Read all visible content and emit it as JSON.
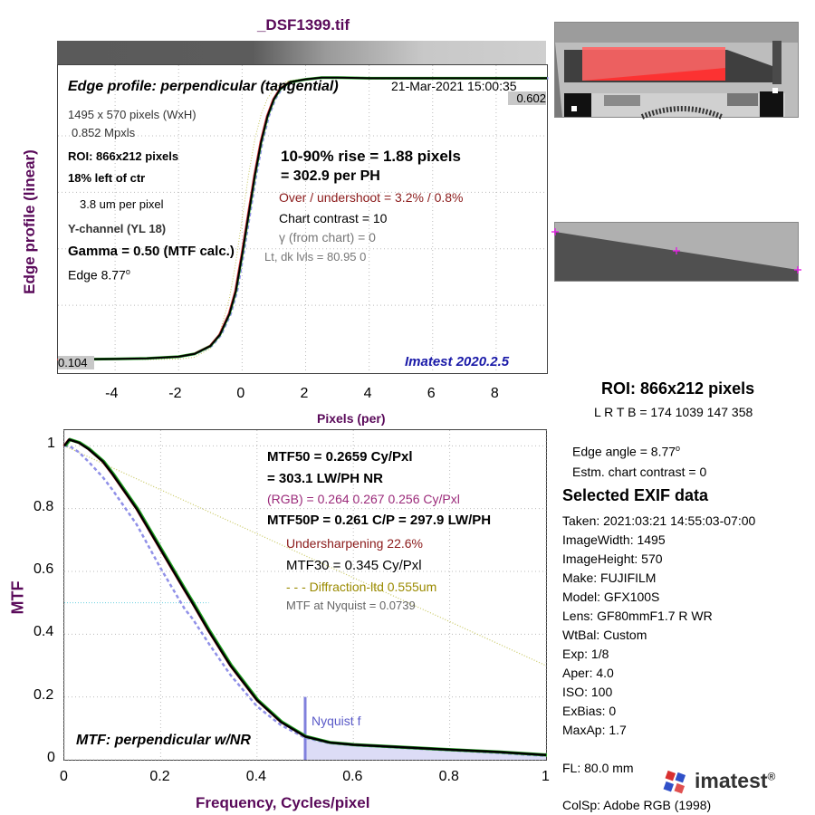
{
  "file_title": "_DSF1399.tif",
  "edge_panel": {
    "title": "Edge profile: perpendicular (tangential)",
    "datetime": "21-Mar-2021 15:00:35",
    "max_label": "0.602",
    "min_label": "0.104",
    "info_left": [
      "1495 x 570 pixels (WxH)",
      "0.852 Mpxls",
      "ROI:  866x212 pixels",
      "18% left of ctr",
      "3.8 um per pixel",
      "Y-channel  (YL 18)",
      "Gamma = 0.50 (MTF calc.)",
      "Edge   8.77"
    ],
    "degree": "o",
    "rise": "10-90% rise = 1.88 pixels",
    "per_ph": "=  302.9 per PH",
    "overshoot": "Over / undershoot =  3.2% /  0.8%",
    "chart_contrast": "Chart contrast = 10",
    "gamma_chart": "γ (from chart) =     0",
    "levels": "Lt, dk lvls = 80.95  0",
    "version": "Imatest 2020.2.5",
    "ylabel": "Edge profile (linear)",
    "xlabel": "Pixels (per)"
  },
  "mtf_panel": {
    "mtf50": "MTF50 = 0.2659 Cy/Pxl",
    "lwph": "= 303.1 LW/PH  NR",
    "rgb": "(RGB) = 0.264  0.267  0.256 Cy/Pxl",
    "mtf50p": "MTF50P = 0.261 C/P = 297.9 LW/PH",
    "undersharpening": "Undersharpening 22.6%",
    "mtf30": "MTF30 = 0.345 Cy/Pxl",
    "diffraction": "- - - Diffraction-ltd  0.555um",
    "nyquist_mtf": "MTF at Nyquist = 0.0739",
    "nyquist_label": "Nyquist f",
    "corner_label": "MTF: perpendicular w/NR",
    "ylabel": "MTF",
    "xlabel": "Frequency, Cycles/pixel"
  },
  "side_panel": {
    "roi": "ROI:  866x212 pixels",
    "lrtb": "L R  T B = 174 1039  147 358",
    "edge_angle": "Edge angle = 8.77",
    "est_contrast": "Estm. chart contrast = 0",
    "exif_title": "Selected EXIF data",
    "exif": [
      "Taken: 2021:03:21 14:55:03-07:00",
      "ImageWidth:  1495",
      "ImageHeight:  570",
      "Make:  FUJIFILM",
      "Model:  GFX100S",
      "Lens:   GF80mmF1.7 R WR",
      "WtBal:  Custom",
      "Exp:    1/8",
      "Aper:   4.0",
      "ISO:    100",
      "ExBias:  0",
      "MaxAp:  1.7"
    ],
    "fl": "FL:      80.0 mm",
    "colsp": "ColSp:  Adobe RGB (1998)",
    "logo": "imatest",
    "logo_mark": "®"
  },
  "colors": {
    "title_purple": "#5a0a5a",
    "overshoot_red": "#8b1a1a",
    "rgb_magenta": "#9b2a7a",
    "diffraction_olive": "#9a8a00",
    "version_blue": "#1a1aa8",
    "nyquist_blue": "#7878d8"
  },
  "chart_data": [
    {
      "type": "line",
      "title": "Edge profile: perpendicular (tangential)",
      "xlabel": "Pixels (per)",
      "ylabel": "Edge profile (linear)",
      "xlim": [
        -5.8,
        9.6
      ],
      "ylim": [
        0.08,
        0.625
      ],
      "xticks": [
        -4,
        -2,
        0,
        2,
        4,
        6,
        8
      ],
      "grid": true,
      "x": [
        -5.8,
        -4,
        -3,
        -2,
        -1.5,
        -1,
        -0.7,
        -0.4,
        -0.2,
        0,
        0.2,
        0.4,
        0.6,
        0.8,
        1.0,
        1.2,
        1.5,
        2,
        2.5,
        3,
        4,
        6,
        8,
        9.6
      ],
      "series": [
        {
          "values": [
            0.104,
            0.105,
            0.106,
            0.109,
            0.114,
            0.128,
            0.148,
            0.185,
            0.225,
            0.29,
            0.36,
            0.43,
            0.49,
            0.535,
            0.565,
            0.583,
            0.595,
            0.6,
            0.603,
            0.603,
            0.602,
            0.602,
            0.602,
            0.602
          ]
        }
      ]
    },
    {
      "type": "line",
      "title": "MTF: perpendicular w/NR",
      "xlabel": "Frequency, Cycles/pixel",
      "ylabel": "MTF",
      "xlim": [
        0,
        1
      ],
      "ylim": [
        0,
        1.05
      ],
      "xticks": [
        0,
        0.2,
        0.4,
        0.6,
        0.8,
        1
      ],
      "yticks": [
        0,
        0.2,
        0.4,
        0.6,
        0.8,
        1
      ],
      "grid": true,
      "x": [
        0,
        0.01,
        0.03,
        0.05,
        0.08,
        0.1,
        0.15,
        0.2,
        0.25,
        0.2659,
        0.3,
        0.345,
        0.4,
        0.45,
        0.5,
        0.55,
        0.6,
        0.7,
        0.8,
        0.9,
        1.0
      ],
      "series": [
        {
          "values": [
            1.0,
            1.02,
            1.01,
            0.99,
            0.95,
            0.91,
            0.8,
            0.67,
            0.54,
            0.5,
            0.41,
            0.3,
            0.19,
            0.12,
            0.074,
            0.055,
            0.048,
            0.04,
            0.032,
            0.025,
            0.015
          ]
        },
        {
          "values": [
            1.0,
            1.0,
            0.98,
            0.95,
            0.9,
            0.86,
            0.75,
            0.61,
            0.48,
            0.45,
            0.37,
            0.27,
            0.17,
            0.11,
            0.07,
            0.053,
            0.046,
            0.038,
            0.03,
            0.022,
            0.012
          ]
        }
      ],
      "diffraction_limit": {
        "x": [
          0,
          1
        ],
        "y": [
          1.0,
          0.3
        ]
      },
      "nyquist": 0.5,
      "mtf50_reference": 0.5
    }
  ]
}
